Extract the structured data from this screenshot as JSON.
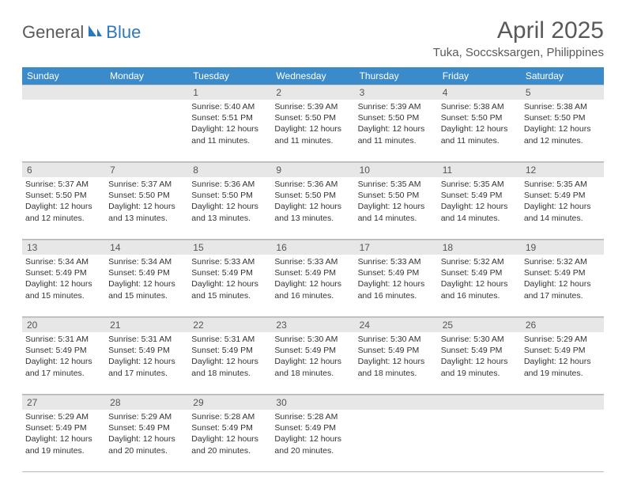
{
  "logo": {
    "part1": "General",
    "part2": "Blue"
  },
  "title": "April 2025",
  "location": "Tuka, Soccsksargen, Philippines",
  "colors": {
    "header_bg": "#3b8bca",
    "header_text": "#ffffff",
    "daynum_bg": "#e7e7e7",
    "text": "#333333",
    "logo_gray": "#5a5a5a",
    "logo_blue": "#2d78bd"
  },
  "weekdays": [
    "Sunday",
    "Monday",
    "Tuesday",
    "Wednesday",
    "Thursday",
    "Friday",
    "Saturday"
  ],
  "weeks": [
    [
      {
        "n": "",
        "sr": "",
        "ss": "",
        "dl": ""
      },
      {
        "n": "",
        "sr": "",
        "ss": "",
        "dl": ""
      },
      {
        "n": "1",
        "sr": "5:40 AM",
        "ss": "5:51 PM",
        "dl": "12 hours and 11 minutes."
      },
      {
        "n": "2",
        "sr": "5:39 AM",
        "ss": "5:50 PM",
        "dl": "12 hours and 11 minutes."
      },
      {
        "n": "3",
        "sr": "5:39 AM",
        "ss": "5:50 PM",
        "dl": "12 hours and 11 minutes."
      },
      {
        "n": "4",
        "sr": "5:38 AM",
        "ss": "5:50 PM",
        "dl": "12 hours and 11 minutes."
      },
      {
        "n": "5",
        "sr": "5:38 AM",
        "ss": "5:50 PM",
        "dl": "12 hours and 12 minutes."
      }
    ],
    [
      {
        "n": "6",
        "sr": "5:37 AM",
        "ss": "5:50 PM",
        "dl": "12 hours and 12 minutes."
      },
      {
        "n": "7",
        "sr": "5:37 AM",
        "ss": "5:50 PM",
        "dl": "12 hours and 13 minutes."
      },
      {
        "n": "8",
        "sr": "5:36 AM",
        "ss": "5:50 PM",
        "dl": "12 hours and 13 minutes."
      },
      {
        "n": "9",
        "sr": "5:36 AM",
        "ss": "5:50 PM",
        "dl": "12 hours and 13 minutes."
      },
      {
        "n": "10",
        "sr": "5:35 AM",
        "ss": "5:50 PM",
        "dl": "12 hours and 14 minutes."
      },
      {
        "n": "11",
        "sr": "5:35 AM",
        "ss": "5:49 PM",
        "dl": "12 hours and 14 minutes."
      },
      {
        "n": "12",
        "sr": "5:35 AM",
        "ss": "5:49 PM",
        "dl": "12 hours and 14 minutes."
      }
    ],
    [
      {
        "n": "13",
        "sr": "5:34 AM",
        "ss": "5:49 PM",
        "dl": "12 hours and 15 minutes."
      },
      {
        "n": "14",
        "sr": "5:34 AM",
        "ss": "5:49 PM",
        "dl": "12 hours and 15 minutes."
      },
      {
        "n": "15",
        "sr": "5:33 AM",
        "ss": "5:49 PM",
        "dl": "12 hours and 15 minutes."
      },
      {
        "n": "16",
        "sr": "5:33 AM",
        "ss": "5:49 PM",
        "dl": "12 hours and 16 minutes."
      },
      {
        "n": "17",
        "sr": "5:33 AM",
        "ss": "5:49 PM",
        "dl": "12 hours and 16 minutes."
      },
      {
        "n": "18",
        "sr": "5:32 AM",
        "ss": "5:49 PM",
        "dl": "12 hours and 16 minutes."
      },
      {
        "n": "19",
        "sr": "5:32 AM",
        "ss": "5:49 PM",
        "dl": "12 hours and 17 minutes."
      }
    ],
    [
      {
        "n": "20",
        "sr": "5:31 AM",
        "ss": "5:49 PM",
        "dl": "12 hours and 17 minutes."
      },
      {
        "n": "21",
        "sr": "5:31 AM",
        "ss": "5:49 PM",
        "dl": "12 hours and 17 minutes."
      },
      {
        "n": "22",
        "sr": "5:31 AM",
        "ss": "5:49 PM",
        "dl": "12 hours and 18 minutes."
      },
      {
        "n": "23",
        "sr": "5:30 AM",
        "ss": "5:49 PM",
        "dl": "12 hours and 18 minutes."
      },
      {
        "n": "24",
        "sr": "5:30 AM",
        "ss": "5:49 PM",
        "dl": "12 hours and 18 minutes."
      },
      {
        "n": "25",
        "sr": "5:30 AM",
        "ss": "5:49 PM",
        "dl": "12 hours and 19 minutes."
      },
      {
        "n": "26",
        "sr": "5:29 AM",
        "ss": "5:49 PM",
        "dl": "12 hours and 19 minutes."
      }
    ],
    [
      {
        "n": "27",
        "sr": "5:29 AM",
        "ss": "5:49 PM",
        "dl": "12 hours and 19 minutes."
      },
      {
        "n": "28",
        "sr": "5:29 AM",
        "ss": "5:49 PM",
        "dl": "12 hours and 20 minutes."
      },
      {
        "n": "29",
        "sr": "5:28 AM",
        "ss": "5:49 PM",
        "dl": "12 hours and 20 minutes."
      },
      {
        "n": "30",
        "sr": "5:28 AM",
        "ss": "5:49 PM",
        "dl": "12 hours and 20 minutes."
      },
      {
        "n": "",
        "sr": "",
        "ss": "",
        "dl": ""
      },
      {
        "n": "",
        "sr": "",
        "ss": "",
        "dl": ""
      },
      {
        "n": "",
        "sr": "",
        "ss": "",
        "dl": ""
      }
    ]
  ],
  "labels": {
    "sunrise": "Sunrise:",
    "sunset": "Sunset:",
    "daylight": "Daylight:"
  }
}
